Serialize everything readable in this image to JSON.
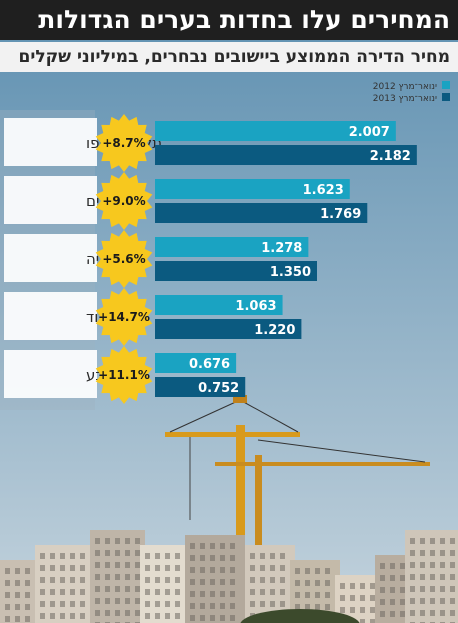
{
  "title": "המחירים עלו בחדות בערים הגדולות",
  "subtitle": "מחיר הדירה הממוצע ביישובים נבחרים, במיליוני שקלים",
  "colors": {
    "series_2012": "#1aa3c2",
    "series_2013": "#0b5a80",
    "badge": "#f7c81e",
    "title_bg": "#1f1f1f",
    "sky_top": "#5d8fb0",
    "sky_bottom": "#c4d3dd"
  },
  "chart_data": {
    "type": "bar",
    "orientation": "horizontal",
    "title": "המחירים עלו בחדות בערים הגדולות",
    "subtitle": "מחיר הדירה הממוצע ביישובים נבחרים, במיליוני שקלים",
    "categories": [
      "תל אביב־יפו",
      "ירושלים",
      "נתניה",
      "אשדוד",
      "באר שבע"
    ],
    "series": [
      {
        "name": "ינואר־מרץ 2012",
        "values": [
          2.007,
          1.623,
          1.278,
          1.063,
          0.676
        ],
        "labels": [
          "2.007",
          "1.623",
          "1.278",
          "1.063",
          "0.676"
        ]
      },
      {
        "name": "ינואר־מרץ 2013",
        "values": [
          2.182,
          1.769,
          1.35,
          1.22,
          0.752
        ],
        "labels": [
          "2.182",
          "1.769",
          "1.350",
          "1.220",
          "0.752"
        ]
      }
    ],
    "changes": [
      "+8.7%",
      "+9.0%",
      "+5.6%",
      "+14.7%",
      "+11.1%"
    ],
    "legend": "top-right",
    "grid": false
  }
}
